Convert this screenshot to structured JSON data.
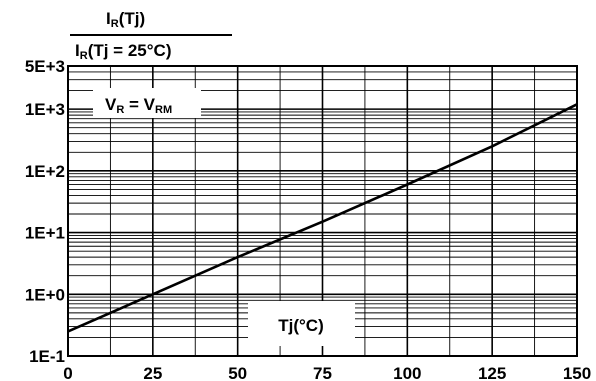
{
  "chart_data": {
    "type": "line",
    "title": {
      "numerator": "IR(Tj)",
      "denominator": "IR(Tj = 25°C)",
      "numerator_parts": [
        "I",
        "R",
        "(Tj)"
      ],
      "denominator_parts": [
        "I",
        "R",
        "(Tj = 25°C)"
      ]
    },
    "annotation": {
      "text": "VR = VRM",
      "parts": [
        "V",
        "R",
        " = V",
        "RM"
      ]
    },
    "xlabel": "Tj(°C)",
    "ylabel": "",
    "x_ticks": [
      "0",
      "25",
      "50",
      "75",
      "100",
      "125",
      "150"
    ],
    "y_ticks": [
      "5E+3",
      "1E+3",
      "1E+2",
      "1E+1",
      "1E+0",
      "1E-1"
    ],
    "xlim": [
      0,
      150
    ],
    "ylim": [
      0.1,
      5000
    ],
    "yscale": "log",
    "grid": true,
    "series": [
      {
        "x": [
          0,
          25,
          50,
          75,
          100,
          125,
          150
        ],
        "y": [
          0.25,
          1.0,
          4.0,
          15,
          60,
          250,
          1200
        ]
      }
    ],
    "colors": {
      "line": "#000000",
      "grid": "#000000"
    }
  }
}
